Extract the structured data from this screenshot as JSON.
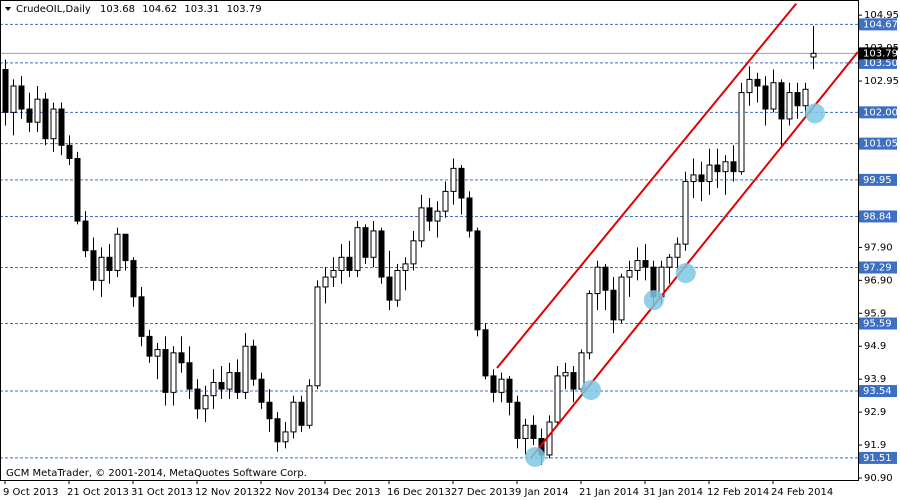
{
  "chart_data": {
    "type": "candlestick",
    "title": "CrudeOIL,Daily",
    "footer": "GCM MetaTrader, © 2001-2014, MetaQuotes Software Corp.",
    "categories": [
      "9 Oct 2013",
      null,
      null,
      null,
      null,
      null,
      null,
      null,
      "21 Oct 2013",
      null,
      null,
      null,
      null,
      null,
      null,
      null,
      "31 Oct 2013",
      null,
      null,
      null,
      null,
      null,
      null,
      null,
      "12 Nov 2013",
      null,
      null,
      null,
      null,
      null,
      null,
      null,
      "22 Nov 2013",
      null,
      null,
      null,
      null,
      null,
      null,
      null,
      "4 Dec 2013",
      null,
      null,
      null,
      null,
      null,
      null,
      null,
      "16 Dec 2013",
      null,
      null,
      null,
      null,
      null,
      null,
      null,
      "27 Dec 2013",
      null,
      null,
      null,
      null,
      null,
      null,
      null,
      "9 Jan 2014",
      null,
      null,
      null,
      null,
      null,
      null,
      null,
      "21 Jan 2014",
      null,
      null,
      null,
      null,
      null,
      null,
      null,
      "31 Jan 2014",
      null,
      null,
      null,
      null,
      null,
      null,
      null,
      "12 Feb 2014",
      null,
      null,
      null,
      null,
      null,
      null,
      null,
      "24 Feb 2014",
      null,
      null,
      null,
      null,
      null
    ],
    "open": [
      103.3,
      102.0,
      102.8,
      102.1,
      101.7,
      102.4,
      101.2,
      102.1,
      101.0,
      100.6,
      98.7,
      97.8,
      96.9,
      97.6,
      97.2,
      98.3,
      97.5,
      96.4,
      95.2,
      94.6,
      94.8,
      93.5,
      94.7,
      94.4,
      93.6,
      93.0,
      93.4,
      93.8,
      93.6,
      94.1,
      93.5,
      94.9,
      93.9,
      93.2,
      92.7,
      92.0,
      92.3,
      93.2,
      92.5,
      93.7,
      96.7,
      97.0,
      97.2,
      97.6,
      97.2,
      98.5,
      97.6,
      98.4,
      97.0,
      96.3,
      97.2,
      97.4,
      98.1,
      99.1,
      98.7,
      99.0,
      99.6,
      100.3,
      99.4,
      98.4,
      95.4,
      94.0,
      93.5,
      93.9,
      93.2,
      92.1,
      92.5,
      92.1,
      91.6,
      92.6,
      94.0,
      94.1,
      93.6,
      94.7,
      96.5,
      97.3,
      96.6,
      95.7,
      97.0,
      97.2,
      97.5,
      97.3,
      96.4,
      97.3,
      97.6,
      98.0,
      99.9,
      100.1,
      99.9,
      100.4,
      100.2,
      100.5,
      100.2,
      102.6,
      103.0,
      102.8,
      102.1,
      102.9,
      101.8,
      102.6,
      102.2,
      103.68
    ],
    "high": [
      103.6,
      103.0,
      103.1,
      102.6,
      102.8,
      102.6,
      102.3,
      102.3,
      101.3,
      100.8,
      99.0,
      98.2,
      97.9,
      98.0,
      98.5,
      98.3,
      97.6,
      96.7,
      95.4,
      95.0,
      95.2,
      94.9,
      95.2,
      94.9,
      93.9,
      93.7,
      94.2,
      94.3,
      94.4,
      94.5,
      95.3,
      95.1,
      94.1,
      93.6,
      92.9,
      92.6,
      93.4,
      93.4,
      93.9,
      96.9,
      97.3,
      97.6,
      98.0,
      98.1,
      98.7,
      98.6,
      98.7,
      98.5,
      97.8,
      97.4,
      97.6,
      98.4,
      99.5,
      99.4,
      99.3,
      99.9,
      100.6,
      100.4,
      99.6,
      98.5,
      95.6,
      94.2,
      94.1,
      94.0,
      93.4,
      92.7,
      92.8,
      92.4,
      92.8,
      94.3,
      94.4,
      94.3,
      94.8,
      96.6,
      97.5,
      97.4,
      97.0,
      97.1,
      97.5,
      97.9,
      98.0,
      97.5,
      97.5,
      97.7,
      98.2,
      100.2,
      100.6,
      100.5,
      100.9,
      100.9,
      100.7,
      101.0,
      102.9,
      103.4,
      103.2,
      103.1,
      103.3,
      103.0,
      102.9,
      102.9,
      102.9,
      104.62
    ],
    "low": [
      101.6,
      101.3,
      101.8,
      101.4,
      101.4,
      101.0,
      100.8,
      100.7,
      100.4,
      98.6,
      97.6,
      96.6,
      96.4,
      96.8,
      97.0,
      97.2,
      96.1,
      94.9,
      94.4,
      93.9,
      93.1,
      93.1,
      94.1,
      93.3,
      92.7,
      92.6,
      93.0,
      93.3,
      93.3,
      93.3,
      93.3,
      93.7,
      93.0,
      92.3,
      91.7,
      91.8,
      92.1,
      92.3,
      92.4,
      93.6,
      96.2,
      96.7,
      96.8,
      97.0,
      97.0,
      97.4,
      97.3,
      96.8,
      96.0,
      96.1,
      96.6,
      97.2,
      97.9,
      98.4,
      98.2,
      98.8,
      99.2,
      98.9,
      98.2,
      95.2,
      93.9,
      93.2,
      93.2,
      92.8,
      91.8,
      91.6,
      91.9,
      91.3,
      91.5,
      92.5,
      93.6,
      93.2,
      93.5,
      94.5,
      96.0,
      96.0,
      95.3,
      95.6,
      96.4,
      96.9,
      96.9,
      96.1,
      96.2,
      96.8,
      97.2,
      97.8,
      99.4,
      99.3,
      99.5,
      99.7,
      99.5,
      99.9,
      100.1,
      102.2,
      102.3,
      101.6,
      102.0,
      101.0,
      101.6,
      101.8,
      101.9,
      103.31
    ],
    "close": [
      102.0,
      102.8,
      102.1,
      101.7,
      102.4,
      101.2,
      102.1,
      101.0,
      100.6,
      98.7,
      97.8,
      96.9,
      97.6,
      97.2,
      98.3,
      97.5,
      96.4,
      95.2,
      94.6,
      94.8,
      93.5,
      94.7,
      94.4,
      93.6,
      93.0,
      93.4,
      93.8,
      93.6,
      94.1,
      93.5,
      94.9,
      93.9,
      93.2,
      92.7,
      92.0,
      92.3,
      93.2,
      92.5,
      93.7,
      96.7,
      97.0,
      97.2,
      97.6,
      97.2,
      98.5,
      97.6,
      98.4,
      97.0,
      96.3,
      97.2,
      97.4,
      98.1,
      99.1,
      98.7,
      99.0,
      99.6,
      100.3,
      99.4,
      98.4,
      95.4,
      94.0,
      93.5,
      93.9,
      93.2,
      92.1,
      92.5,
      92.1,
      91.6,
      92.6,
      94.0,
      94.1,
      93.6,
      94.7,
      96.5,
      97.3,
      96.6,
      95.7,
      97.0,
      97.2,
      97.5,
      97.3,
      96.4,
      97.3,
      97.6,
      98.0,
      99.9,
      100.1,
      99.9,
      100.4,
      100.2,
      100.5,
      100.2,
      102.6,
      103.0,
      102.8,
      102.1,
      102.9,
      101.8,
      102.6,
      102.2,
      102.7,
      103.79
    ],
    "bull_color": "#ffffff",
    "bear_color": "#000000",
    "ylim": [
      90.84,
      105.41
    ],
    "yticks": [
      104.95,
      103.95,
      102.95,
      {
        "value": 97.9,
        "label": "97.90"
      },
      {
        "value": 96.9,
        "label": "96.90"
      },
      95.9,
      94.9,
      93.9,
      92.9,
      91.9,
      {
        "value": 90.9,
        "label": "90.90"
      }
    ],
    "levels": [
      104.67,
      {
        "value": 103.5,
        "label": "103.50"
      },
      {
        "value": 102.0,
        "label": "102.00"
      },
      101.05,
      99.95,
      98.84,
      97.29,
      95.59,
      93.54,
      91.51
    ],
    "level_color": "#3d6fc4",
    "current_price": 103.79,
    "channel_color": "#e00000",
    "channel": [
      {
        "from_index": 61.5,
        "from_price": 94.24,
        "to_index": 98.9,
        "to_price": 105.3
      },
      {
        "from_index": 65.75,
        "from_price": 91.51,
        "to_index": 106.6,
        "to_price": 103.83
      }
    ],
    "highlight_color": "#7ec8e3",
    "highlights": [
      {
        "index": 66.25,
        "price": 91.54
      },
      {
        "index": 73.25,
        "price": 93.57
      },
      {
        "index": 81.1,
        "price": 96.3
      },
      {
        "index": 85.1,
        "price": 97.12
      },
      {
        "index": 101.25,
        "price": 101.97
      }
    ]
  }
}
